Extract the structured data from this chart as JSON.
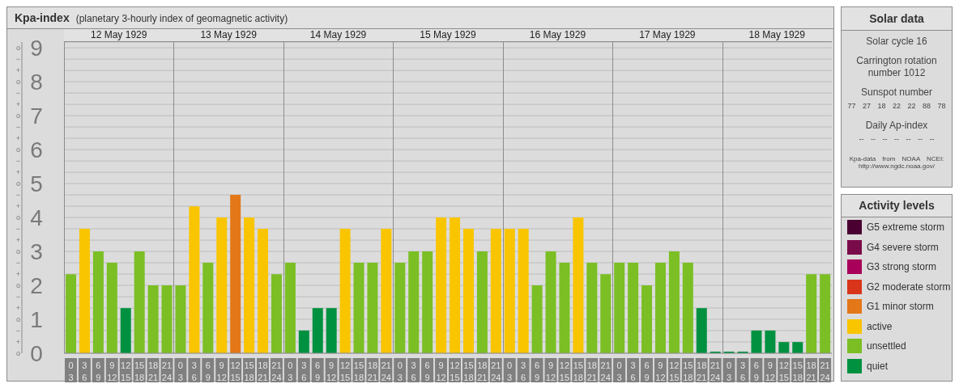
{
  "chart_data": [
    {
      "type": "bar",
      "title": "Kpa-index",
      "subtitle": "(planetary 3-hourly index of geomagnetic activity)",
      "stacked": true,
      "grid": "y",
      "legend": "right",
      "legend_title": "Activity levels",
      "annotations": [
        "12 May 1929",
        "13 May 1929",
        "14 May 1929",
        "15 May 1929",
        "16 May 1929",
        "17 May 1929",
        "18 May 1929",
        "o",
        "+",
        "−",
        "o",
        "+",
        "−",
        "o",
        "+",
        "−",
        "o",
        "+",
        "−",
        "o",
        "+",
        "−",
        "o",
        "+",
        "−",
        "o",
        "+",
        "−",
        "o",
        "+",
        "−",
        "o",
        "+",
        "−",
        "o"
      ],
      "categories": [
        "0\n3",
        "3\n6",
        "6\n9",
        "9\n12",
        "12\n15",
        "15\n18",
        "18\n21",
        "21\n24",
        "0\n3",
        "3\n6",
        "6\n9",
        "9\n12",
        "12\n15",
        "15\n18",
        "18\n21",
        "21\n24",
        "0\n3",
        "3\n6",
        "6\n9",
        "9\n12",
        "12\n15",
        "15\n18",
        "18\n21",
        "21\n24",
        "0\n3",
        "3\n6",
        "6\n9",
        "9\n12",
        "12\n15",
        "15\n18",
        "18\n21",
        "21\n24",
        "0\n3",
        "3\n6",
        "6\n9",
        "9\n12",
        "12\n15",
        "15\n18",
        "18\n21",
        "21\n24",
        "0\n3",
        "3\n6",
        "6\n9",
        "9\n12",
        "12\n15",
        "15\n18",
        "18\n21",
        "21\n24",
        "0\n3",
        "3\n6",
        "6\n9",
        "9\n12",
        "12\n15",
        "15\n18",
        "18\n21",
        "21\n24"
      ],
      "ylim": [
        0,
        9.17
      ],
      "yticks": [
        0,
        1,
        2,
        3,
        4,
        5,
        6,
        7,
        8,
        9
      ],
      "series": [
        {
          "name": "G5 extreme storm",
          "color": "#4a0030",
          "values": [
            null,
            null,
            null,
            null,
            null,
            null,
            null,
            null,
            null,
            null,
            null,
            null,
            null,
            null,
            null,
            null,
            null,
            null,
            null,
            null,
            null,
            null,
            null,
            null,
            null,
            null,
            null,
            null,
            null,
            null,
            null,
            null,
            null,
            null,
            null,
            null,
            null,
            null,
            null,
            null,
            null,
            null,
            null,
            null,
            null,
            null,
            null,
            null,
            null,
            null,
            null,
            null,
            null,
            null,
            null,
            null
          ]
        },
        {
          "name": "G4 severe storm",
          "color": "#7a0b4a",
          "values": [
            null,
            null,
            null,
            null,
            null,
            null,
            null,
            null,
            null,
            null,
            null,
            null,
            null,
            null,
            null,
            null,
            null,
            null,
            null,
            null,
            null,
            null,
            null,
            null,
            null,
            null,
            null,
            null,
            null,
            null,
            null,
            null,
            null,
            null,
            null,
            null,
            null,
            null,
            null,
            null,
            null,
            null,
            null,
            null,
            null,
            null,
            null,
            null,
            null,
            null,
            null,
            null,
            null,
            null,
            null,
            null
          ]
        },
        {
          "name": "G3 strong storm",
          "color": "#a8005a",
          "values": [
            null,
            null,
            null,
            null,
            null,
            null,
            null,
            null,
            null,
            null,
            null,
            null,
            null,
            null,
            null,
            null,
            null,
            null,
            null,
            null,
            null,
            null,
            null,
            null,
            null,
            null,
            null,
            null,
            null,
            null,
            null,
            null,
            null,
            null,
            null,
            null,
            null,
            null,
            null,
            null,
            null,
            null,
            null,
            null,
            null,
            null,
            null,
            null,
            null,
            null,
            null,
            null,
            null,
            null,
            null,
            null
          ]
        },
        {
          "name": "G2 moderate storm",
          "color": "#d8351b",
          "values": [
            null,
            null,
            null,
            null,
            null,
            null,
            null,
            null,
            null,
            null,
            null,
            null,
            null,
            null,
            null,
            null,
            null,
            null,
            null,
            null,
            null,
            null,
            null,
            null,
            null,
            null,
            null,
            null,
            null,
            null,
            null,
            null,
            null,
            null,
            null,
            null,
            null,
            null,
            null,
            null,
            null,
            null,
            null,
            null,
            null,
            null,
            null,
            null,
            null,
            null,
            null,
            null,
            null,
            null,
            null,
            null
          ]
        },
        {
          "name": "G1 minor storm",
          "color": "#e47718",
          "values": [
            null,
            null,
            null,
            null,
            null,
            null,
            null,
            null,
            null,
            null,
            null,
            null,
            4.67,
            null,
            null,
            null,
            null,
            null,
            null,
            null,
            null,
            null,
            null,
            null,
            null,
            null,
            null,
            null,
            null,
            null,
            null,
            null,
            null,
            null,
            null,
            null,
            null,
            null,
            null,
            null,
            null,
            null,
            null,
            null,
            null,
            null,
            null,
            null,
            null,
            null,
            null,
            null,
            null,
            null,
            null,
            null
          ]
        },
        {
          "name": "active",
          "color": "#f9c500",
          "values": [
            null,
            3.67,
            null,
            null,
            null,
            null,
            null,
            null,
            null,
            4.33,
            null,
            4,
            null,
            4,
            3.67,
            null,
            null,
            null,
            null,
            null,
            3.67,
            null,
            null,
            3.67,
            null,
            null,
            null,
            4,
            4,
            3.67,
            null,
            3.67,
            3.67,
            3.67,
            null,
            null,
            null,
            4,
            null,
            null,
            null,
            null,
            null,
            null,
            null,
            null,
            null,
            null,
            null,
            null,
            null,
            null,
            null,
            null,
            null,
            null
          ]
        },
        {
          "name": "unsettled",
          "color": "#7bbf24",
          "values": [
            2.33,
            null,
            3,
            2.67,
            null,
            3,
            2,
            2,
            2,
            null,
            2.67,
            null,
            null,
            null,
            null,
            2.33,
            2.67,
            null,
            null,
            null,
            null,
            2.67,
            2.67,
            null,
            2.67,
            3,
            3,
            null,
            null,
            null,
            3,
            null,
            null,
            null,
            2,
            3,
            2.67,
            null,
            2.67,
            2.33,
            2.67,
            2.67,
            2,
            2.67,
            3,
            2.67,
            null,
            null,
            null,
            null,
            null,
            null,
            null,
            null,
            2.33,
            2.33
          ]
        },
        {
          "name": "quiet",
          "color": "#009140",
          "values": [
            null,
            null,
            null,
            null,
            1.33,
            null,
            null,
            null,
            null,
            null,
            null,
            null,
            null,
            null,
            null,
            null,
            null,
            0.67,
            1.33,
            1.33,
            null,
            null,
            null,
            null,
            null,
            null,
            null,
            null,
            null,
            null,
            null,
            null,
            null,
            null,
            null,
            null,
            null,
            null,
            null,
            null,
            null,
            null,
            null,
            null,
            null,
            null,
            1.33,
            0,
            0,
            0,
            0.67,
            0.67,
            0.33,
            0.33,
            null,
            null
          ]
        }
      ]
    },
    {
      "type": "other",
      "title": "Solar data",
      "annotations": [
        "Solar cycle 16",
        "Carrington rotation number 1012",
        "Sunspot number",
        "77 27 18 22 22 88 78",
        "Daily Ap-index",
        "-- -- -- -- -- -- --",
        "Kpa-data from NOAA NCEI: http://www.ngdc.noaa.gov/"
      ]
    }
  ]
}
